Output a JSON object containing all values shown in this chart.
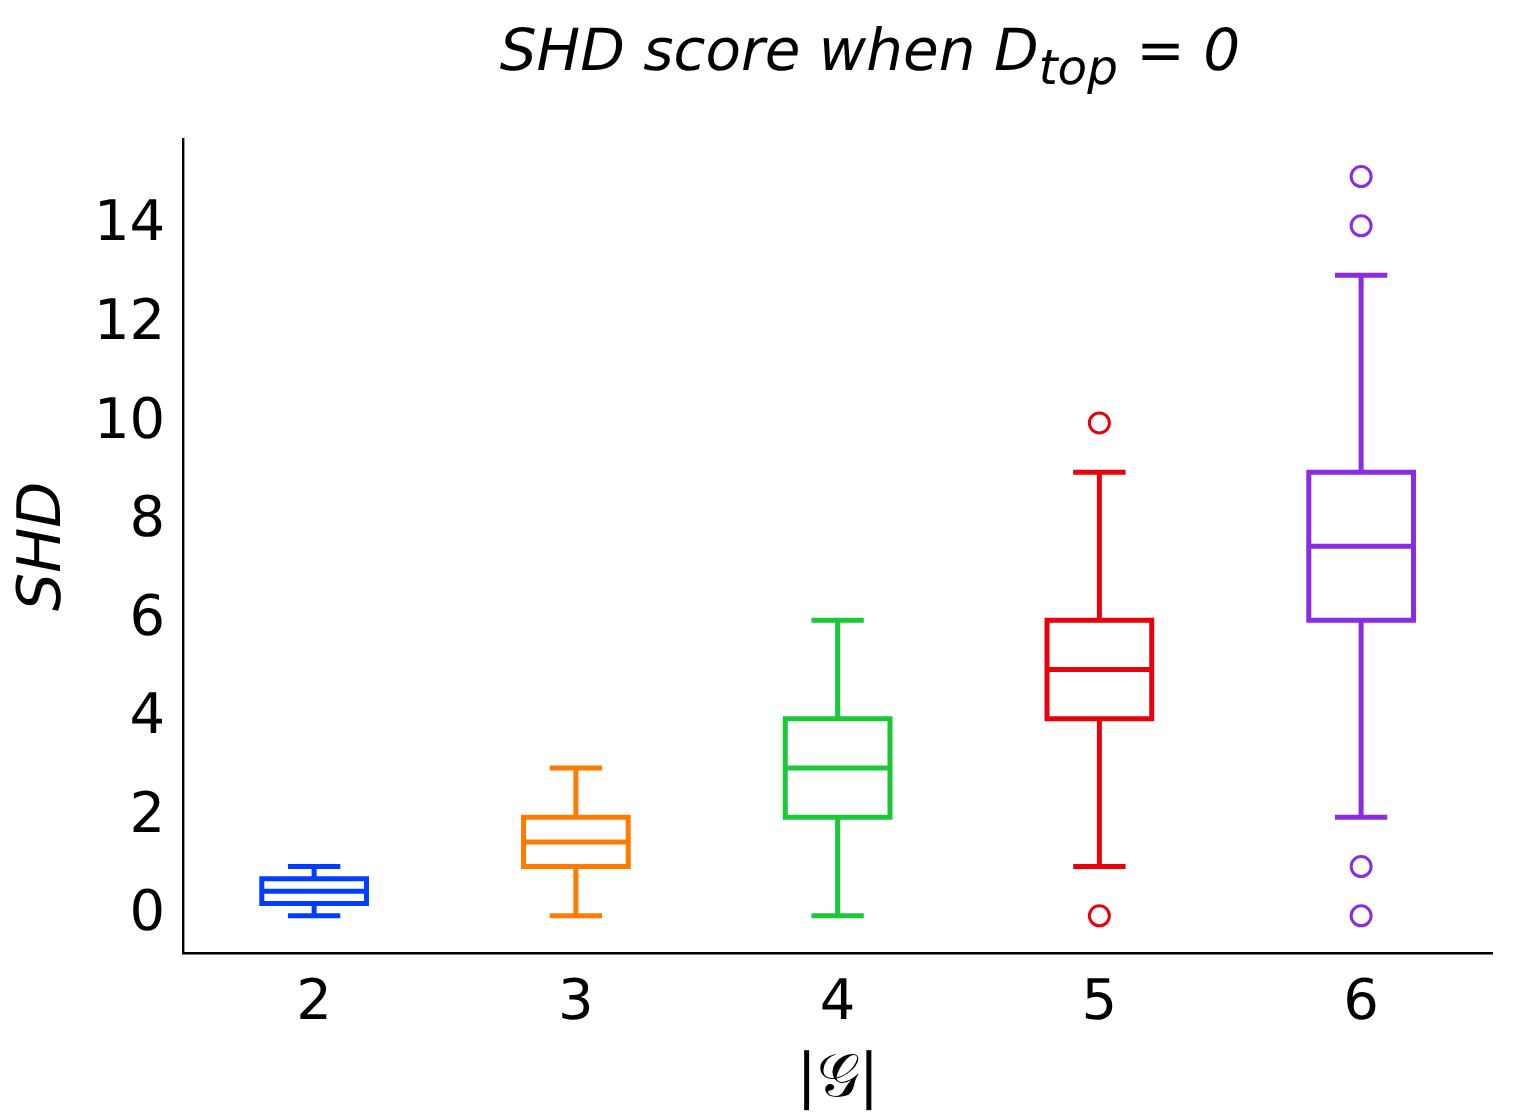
{
  "chart_data": {
    "type": "box",
    "title": "SHD score when D$_{top}$ = 0",
    "xlabel": "|𝒢|",
    "ylabel": "SHD",
    "categories": [
      "2",
      "3",
      "4",
      "5",
      "6"
    ],
    "colors": [
      "#023eff",
      "#ff7c00",
      "#1ac938",
      "#e8000b",
      "#8b2be2"
    ],
    "boxes": [
      {
        "low": 0,
        "q1": 0.25,
        "median": 0.5,
        "q3": 0.75,
        "high": 1
      },
      {
        "low": 0,
        "q1": 1,
        "median": 1.5,
        "q3": 2,
        "high": 3
      },
      {
        "low": 0,
        "q1": 2,
        "median": 3,
        "q3": 4,
        "high": 6
      },
      {
        "low": 1,
        "q1": 4,
        "median": 5,
        "q3": 6,
        "high": 9,
        "outliers": [
          0,
          10
        ]
      },
      {
        "low": 2,
        "q1": 6,
        "median": 7.5,
        "q3": 9,
        "high": 13,
        "outliers": [
          0,
          1,
          14,
          15
        ]
      }
    ],
    "ylim": [
      -0.75,
      15.75
    ],
    "yticks": [
      0,
      2,
      4,
      6,
      8,
      10,
      12,
      14
    ],
    "grid": false,
    "legend": false,
    "marker": "circle"
  }
}
